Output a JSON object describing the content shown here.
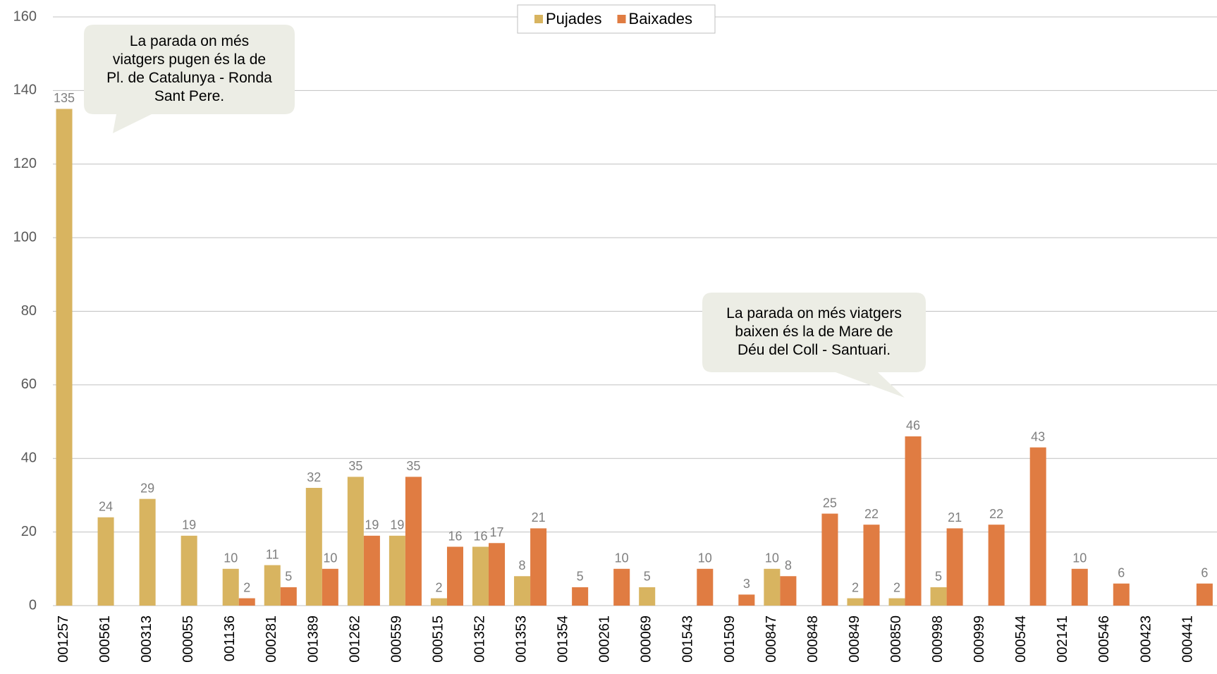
{
  "chart_data": {
    "type": "bar",
    "categories": [
      "001257",
      "000561",
      "000313",
      "000055",
      "001136",
      "000281",
      "001389",
      "001262",
      "000559",
      "000515",
      "001352",
      "001353",
      "001354",
      "000261",
      "000069",
      "001543",
      "001509",
      "000847",
      "000848",
      "000849",
      "000850",
      "000998",
      "000999",
      "000544",
      "002141",
      "000546",
      "000423",
      "000441"
    ],
    "series": [
      {
        "name": "Pujades",
        "color": "#d8b460",
        "values": [
          135,
          24,
          29,
          19,
          10,
          11,
          32,
          35,
          19,
          2,
          16,
          8,
          null,
          null,
          5,
          null,
          null,
          10,
          null,
          2,
          2,
          5,
          null,
          null,
          null,
          null,
          null,
          null
        ]
      },
      {
        "name": "Baixades",
        "color": "#e07c42",
        "values": [
          null,
          null,
          null,
          null,
          2,
          5,
          10,
          19,
          35,
          16,
          17,
          21,
          5,
          10,
          null,
          10,
          3,
          8,
          25,
          22,
          46,
          21,
          22,
          43,
          10,
          6,
          null,
          6
        ]
      }
    ],
    "ylim": [
      0,
      160
    ],
    "yticks": [
      0,
      20,
      40,
      60,
      80,
      100,
      120,
      140,
      160
    ],
    "grid": true,
    "legend": "top",
    "annotations": [
      {
        "lines": [
          "La parada on més",
          "viatgers pugen és la de",
          "Pl. de Catalunya - Ronda",
          "Sant Pere."
        ]
      },
      {
        "lines": [
          "La parada on més viatgers",
          "baixen és la de Mare de",
          "Déu del Coll - Santuari."
        ]
      }
    ]
  }
}
